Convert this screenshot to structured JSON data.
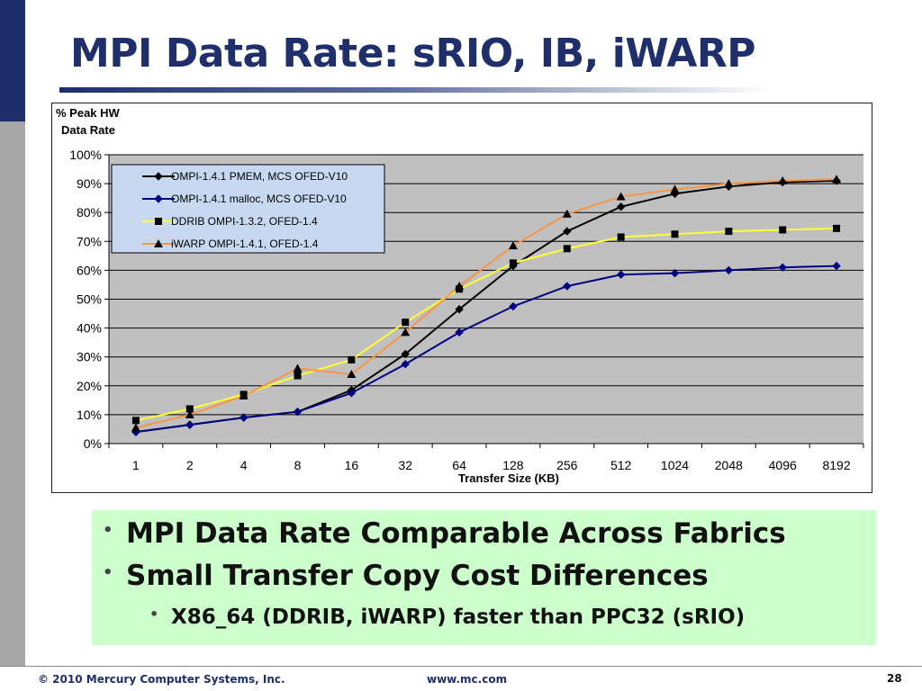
{
  "slide": {
    "title": "MPI Data Rate: sRIO, IB, iWARP",
    "bullets": [
      "MPI Data Rate Comparable Across Fabrics",
      "Small Transfer Copy Cost Differences"
    ],
    "sub_bullets": [
      "X86_64 (DDRIB, iWARP) faster than PPC32 (sRIO)"
    ],
    "footer": {
      "copyright": "© 2010 Mercury Computer Systems, Inc.",
      "url": "www.mc.com",
      "page_number": "28"
    }
  },
  "chart_data": {
    "type": "line",
    "ylabel_lines": [
      "% Peak HW",
      "Data Rate"
    ],
    "xlabel": "Transfer Size (KB)",
    "categories": [
      "1",
      "2",
      "4",
      "8",
      "16",
      "32",
      "64",
      "128",
      "256",
      "512",
      "1024",
      "2048",
      "4096",
      "8192"
    ],
    "ylim": [
      0,
      100
    ],
    "yticks": [
      "0%",
      "10%",
      "20%",
      "30%",
      "40%",
      "50%",
      "60%",
      "70%",
      "80%",
      "90%",
      "100%"
    ],
    "grid": "horizontal",
    "legend_position": "top-left",
    "plot_background": "#c0c0c0",
    "legend_background": "#c6d9f0",
    "series": [
      {
        "key": "pmem",
        "name": "OMPI-1.4.1 PMEM, MCS OFED-V10",
        "color": "#000000",
        "marker": "diamond",
        "values": [
          4,
          6.5,
          9,
          11,
          18.5,
          31,
          46.5,
          61.5,
          73.5,
          82,
          86.5,
          89,
          90.5,
          91
        ]
      },
      {
        "key": "malloc",
        "name": "OMPI-1.4.1 malloc, MCS OFED-V10",
        "color": "#000080",
        "marker": "diamond",
        "values": [
          4,
          6.5,
          9,
          11,
          17.5,
          27.5,
          38.5,
          47.5,
          54.5,
          58.5,
          59,
          60,
          61,
          61.5
        ]
      },
      {
        "key": "ddrib",
        "name": "DDRIB OMPI-1.3.2, OFED-1.4",
        "color": "#ffff33",
        "marker_color": "#000000",
        "marker": "square",
        "values": [
          8,
          12,
          17,
          23.5,
          29,
          42,
          53.5,
          62.5,
          67.5,
          71.5,
          72.5,
          73.5,
          74,
          74.5
        ]
      },
      {
        "key": "iwarp",
        "name": "iWARP OMPI-1.4.1, OFED-1.4",
        "color": "#f79646",
        "marker_color": "#000000",
        "marker": "triangle",
        "values": [
          5.5,
          10,
          16.5,
          26,
          24,
          38.5,
          54.5,
          68.5,
          79.5,
          85.5,
          88,
          90,
          91,
          91.5
        ]
      }
    ]
  }
}
